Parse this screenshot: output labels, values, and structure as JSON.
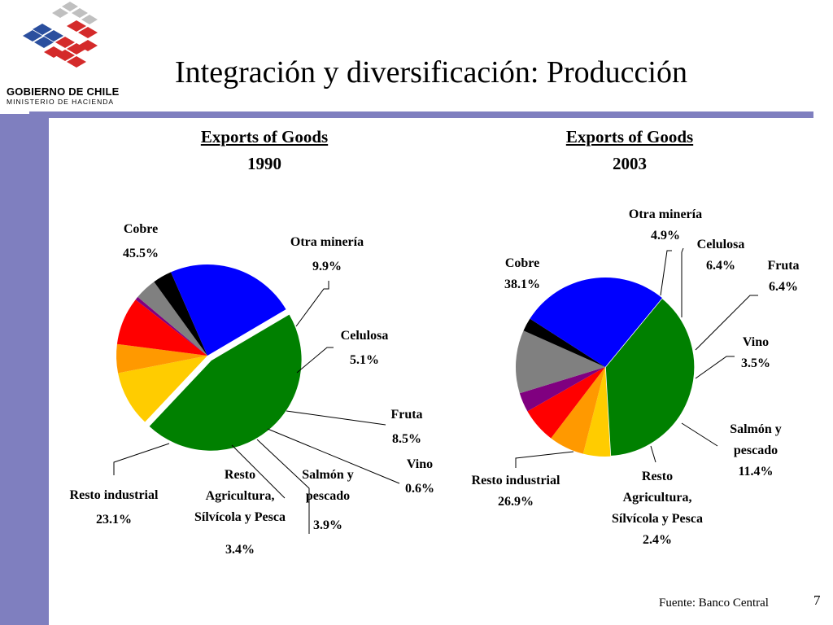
{
  "slide": {
    "title": "Integración y diversificación: Producción",
    "logo_main": "GOBIERNO DE CHILE",
    "logo_sub": "MINISTERIO DE HACIENDA",
    "source": "Fuente: Banco Central",
    "page_number": "7",
    "accent_color": "#7f7fbf"
  },
  "chart_data": [
    {
      "type": "pie",
      "title": "Exports of Goods",
      "subtitle": "1990",
      "slices": [
        {
          "key": "cobre",
          "label": [
            "Cobre"
          ],
          "pct_text": "45.5%",
          "value": 45.5,
          "color": "#008000"
        },
        {
          "key": "otra-mineria",
          "label": [
            "Otra  minería"
          ],
          "pct_text": "9.9%",
          "value": 9.9,
          "color": "#ffcc00"
        },
        {
          "key": "celulosa",
          "label": [
            "Celulosa"
          ],
          "pct_text": "5.1%",
          "value": 5.1,
          "color": "#ff9900"
        },
        {
          "key": "fruta",
          "label": [
            "Fruta"
          ],
          "pct_text": "8.5%",
          "value": 8.5,
          "color": "#ff0000"
        },
        {
          "key": "vino",
          "label": [
            "Vino"
          ],
          "pct_text": "0.6%",
          "value": 0.6,
          "color": "#800080"
        },
        {
          "key": "salmon",
          "label": [
            "Salmón y",
            "pescado"
          ],
          "pct_text": "3.9%",
          "value": 3.9,
          "color": "#808080"
        },
        {
          "key": "resto-agricultura",
          "label": [
            "Resto",
            "Agricultura,",
            "Sílvícola y Pesca"
          ],
          "pct_text": "3.4%",
          "value": 3.4,
          "color": "#000000"
        },
        {
          "key": "resto-industrial",
          "label": [
            "Resto industrial"
          ],
          "pct_text": "23.1%",
          "value": 23.1,
          "color": "#0000ff"
        }
      ]
    },
    {
      "type": "pie",
      "title": "Exports of Goods",
      "subtitle": "2003",
      "slices": [
        {
          "key": "cobre",
          "label": [
            "Cobre"
          ],
          "pct_text": "38.1%",
          "value": 38.1,
          "color": "#008000"
        },
        {
          "key": "otra-mineria",
          "label": [
            "Otra  minería"
          ],
          "pct_text": "4.9%",
          "value": 4.9,
          "color": "#ffcc00"
        },
        {
          "key": "celulosa",
          "label": [
            "Celulosa"
          ],
          "pct_text": "6.4%",
          "value": 6.4,
          "color": "#ff9900"
        },
        {
          "key": "fruta",
          "label": [
            "Fruta"
          ],
          "pct_text": "6.4%",
          "value": 6.4,
          "color": "#ff0000"
        },
        {
          "key": "vino",
          "label": [
            "Vino"
          ],
          "pct_text": "3.5%",
          "value": 3.5,
          "color": "#800080"
        },
        {
          "key": "salmon",
          "label": [
            "Salmón y",
            "pescado"
          ],
          "pct_text": "11.4%",
          "value": 11.4,
          "color": "#808080"
        },
        {
          "key": "resto-agricultura",
          "label": [
            "Resto",
            "Agricultura,",
            "Sílvícola y Pesca"
          ],
          "pct_text": "2.4%",
          "value": 2.4,
          "color": "#000000"
        },
        {
          "key": "resto-industrial",
          "label": [
            "Resto industrial"
          ],
          "pct_text": "26.9%",
          "value": 26.9,
          "color": "#0000ff"
        }
      ]
    }
  ]
}
